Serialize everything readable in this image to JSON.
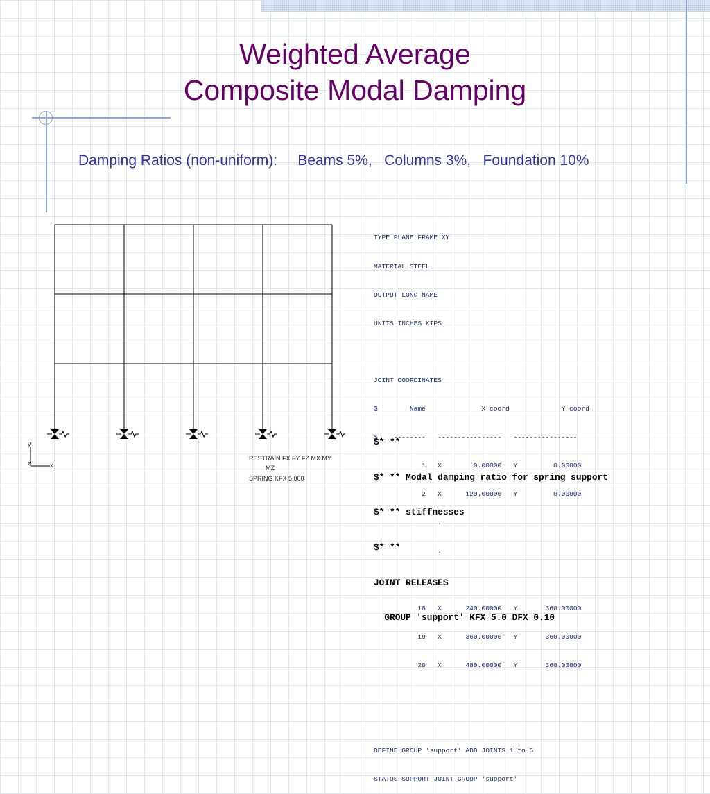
{
  "slide": {
    "title_line1": "Weighted Average",
    "title_line2": "Composite Modal Damping",
    "damping_ratios": "Damping Ratios (non-uniform):     Beams 5%,   Columns 3%,   Foundation 10%"
  },
  "diagram": {
    "axis_y": "y",
    "axis_z": "z",
    "axis_x": "x",
    "restrain_line1": "RESTRAIN FX FY FZ MX MY",
    "restrain_line2": "MZ",
    "spring_line": "SPRING KFX 5.000"
  },
  "input_file": {
    "lines": [
      "TYPE PLANE FRAME XY",
      "MATERIAL STEEL",
      "OUTPUT LONG NAME",
      "UNITS INCHES KIPS",
      "",
      "JOINT COORDINATES",
      "$        Name              X coord             Y coord",
      "$    --------   ----------------   ----------------",
      "            1   X        0.00000   Y         0.00000",
      "            2   X      120.00000   Y         0.00000",
      "                .",
      "                .",
      "                .",
      "           18   X      240.00000   Y       360.00000",
      "           19   X      360.00000   Y       360.00000",
      "           20   X      480.00000   Y       360.00000",
      "",
      "",
      "DEFINE GROUP 'support' ADD JOINTS 1 to 5",
      "STATUS SUPPORT JOINT GROUP 'support'"
    ],
    "bold_lines": [
      "$* **",
      "$* ** Modal damping ratio for spring support",
      "$* ** stiffnesses",
      "$* **",
      "JOINT RELEASES",
      "  GROUP 'support' KFX 5.0 DFX 0.10"
    ]
  },
  "colors": {
    "title": "#660066",
    "subtitle": "#333399",
    "grid": "#c8d4e4",
    "accent_line": "#8fa6d6"
  }
}
